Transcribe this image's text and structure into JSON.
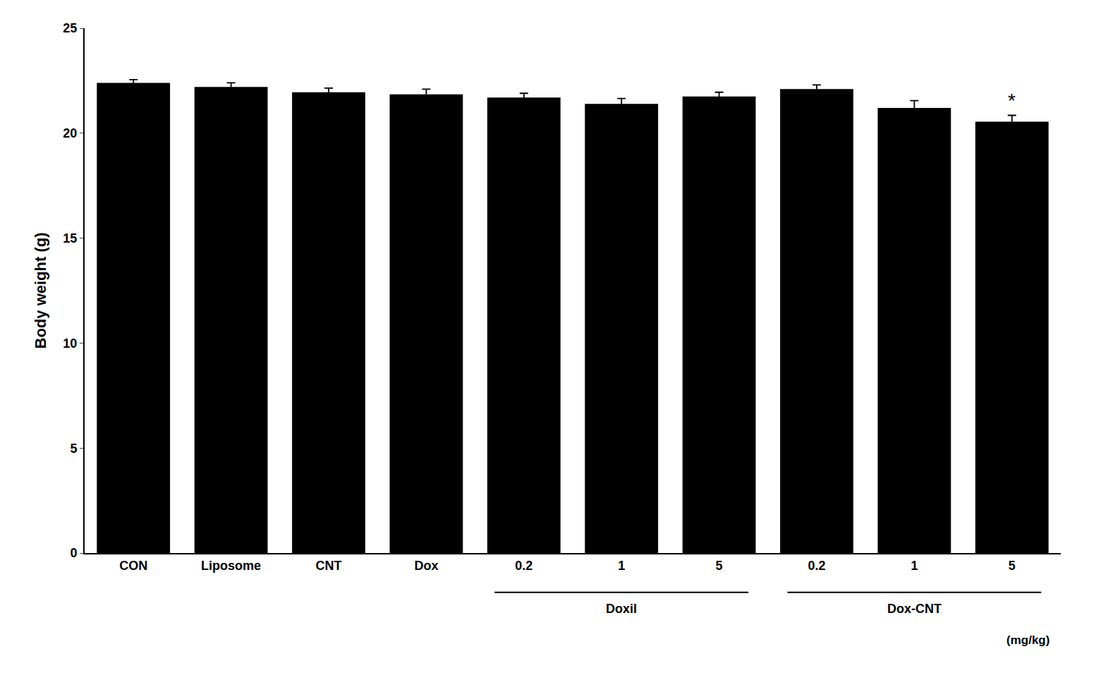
{
  "chart_data": {
    "type": "bar",
    "categories": [
      "CON",
      "Liposome",
      "CNT",
      "Dox",
      "0.2",
      "1",
      "5",
      "0.2",
      "1",
      "5"
    ],
    "values": [
      22.4,
      22.2,
      21.95,
      21.85,
      21.7,
      21.4,
      21.75,
      22.1,
      21.2,
      20.55
    ],
    "errors": [
      0.15,
      0.2,
      0.2,
      0.25,
      0.2,
      0.25,
      0.2,
      0.2,
      0.35,
      0.3
    ],
    "color": "#000000",
    "ylabel": "Body weight (g)",
    "ylim": [
      0,
      25
    ],
    "yticks": [
      0,
      5,
      10,
      15,
      20,
      25
    ],
    "grid": false,
    "groups": [
      {
        "label": "Doxil",
        "members": [
          4,
          5,
          6
        ]
      },
      {
        "label": "Dox-CNT",
        "members": [
          7,
          8,
          9
        ]
      }
    ],
    "unit_label": "(mg/kg)",
    "significance": [
      {
        "index": 9,
        "label": "*"
      }
    ]
  }
}
